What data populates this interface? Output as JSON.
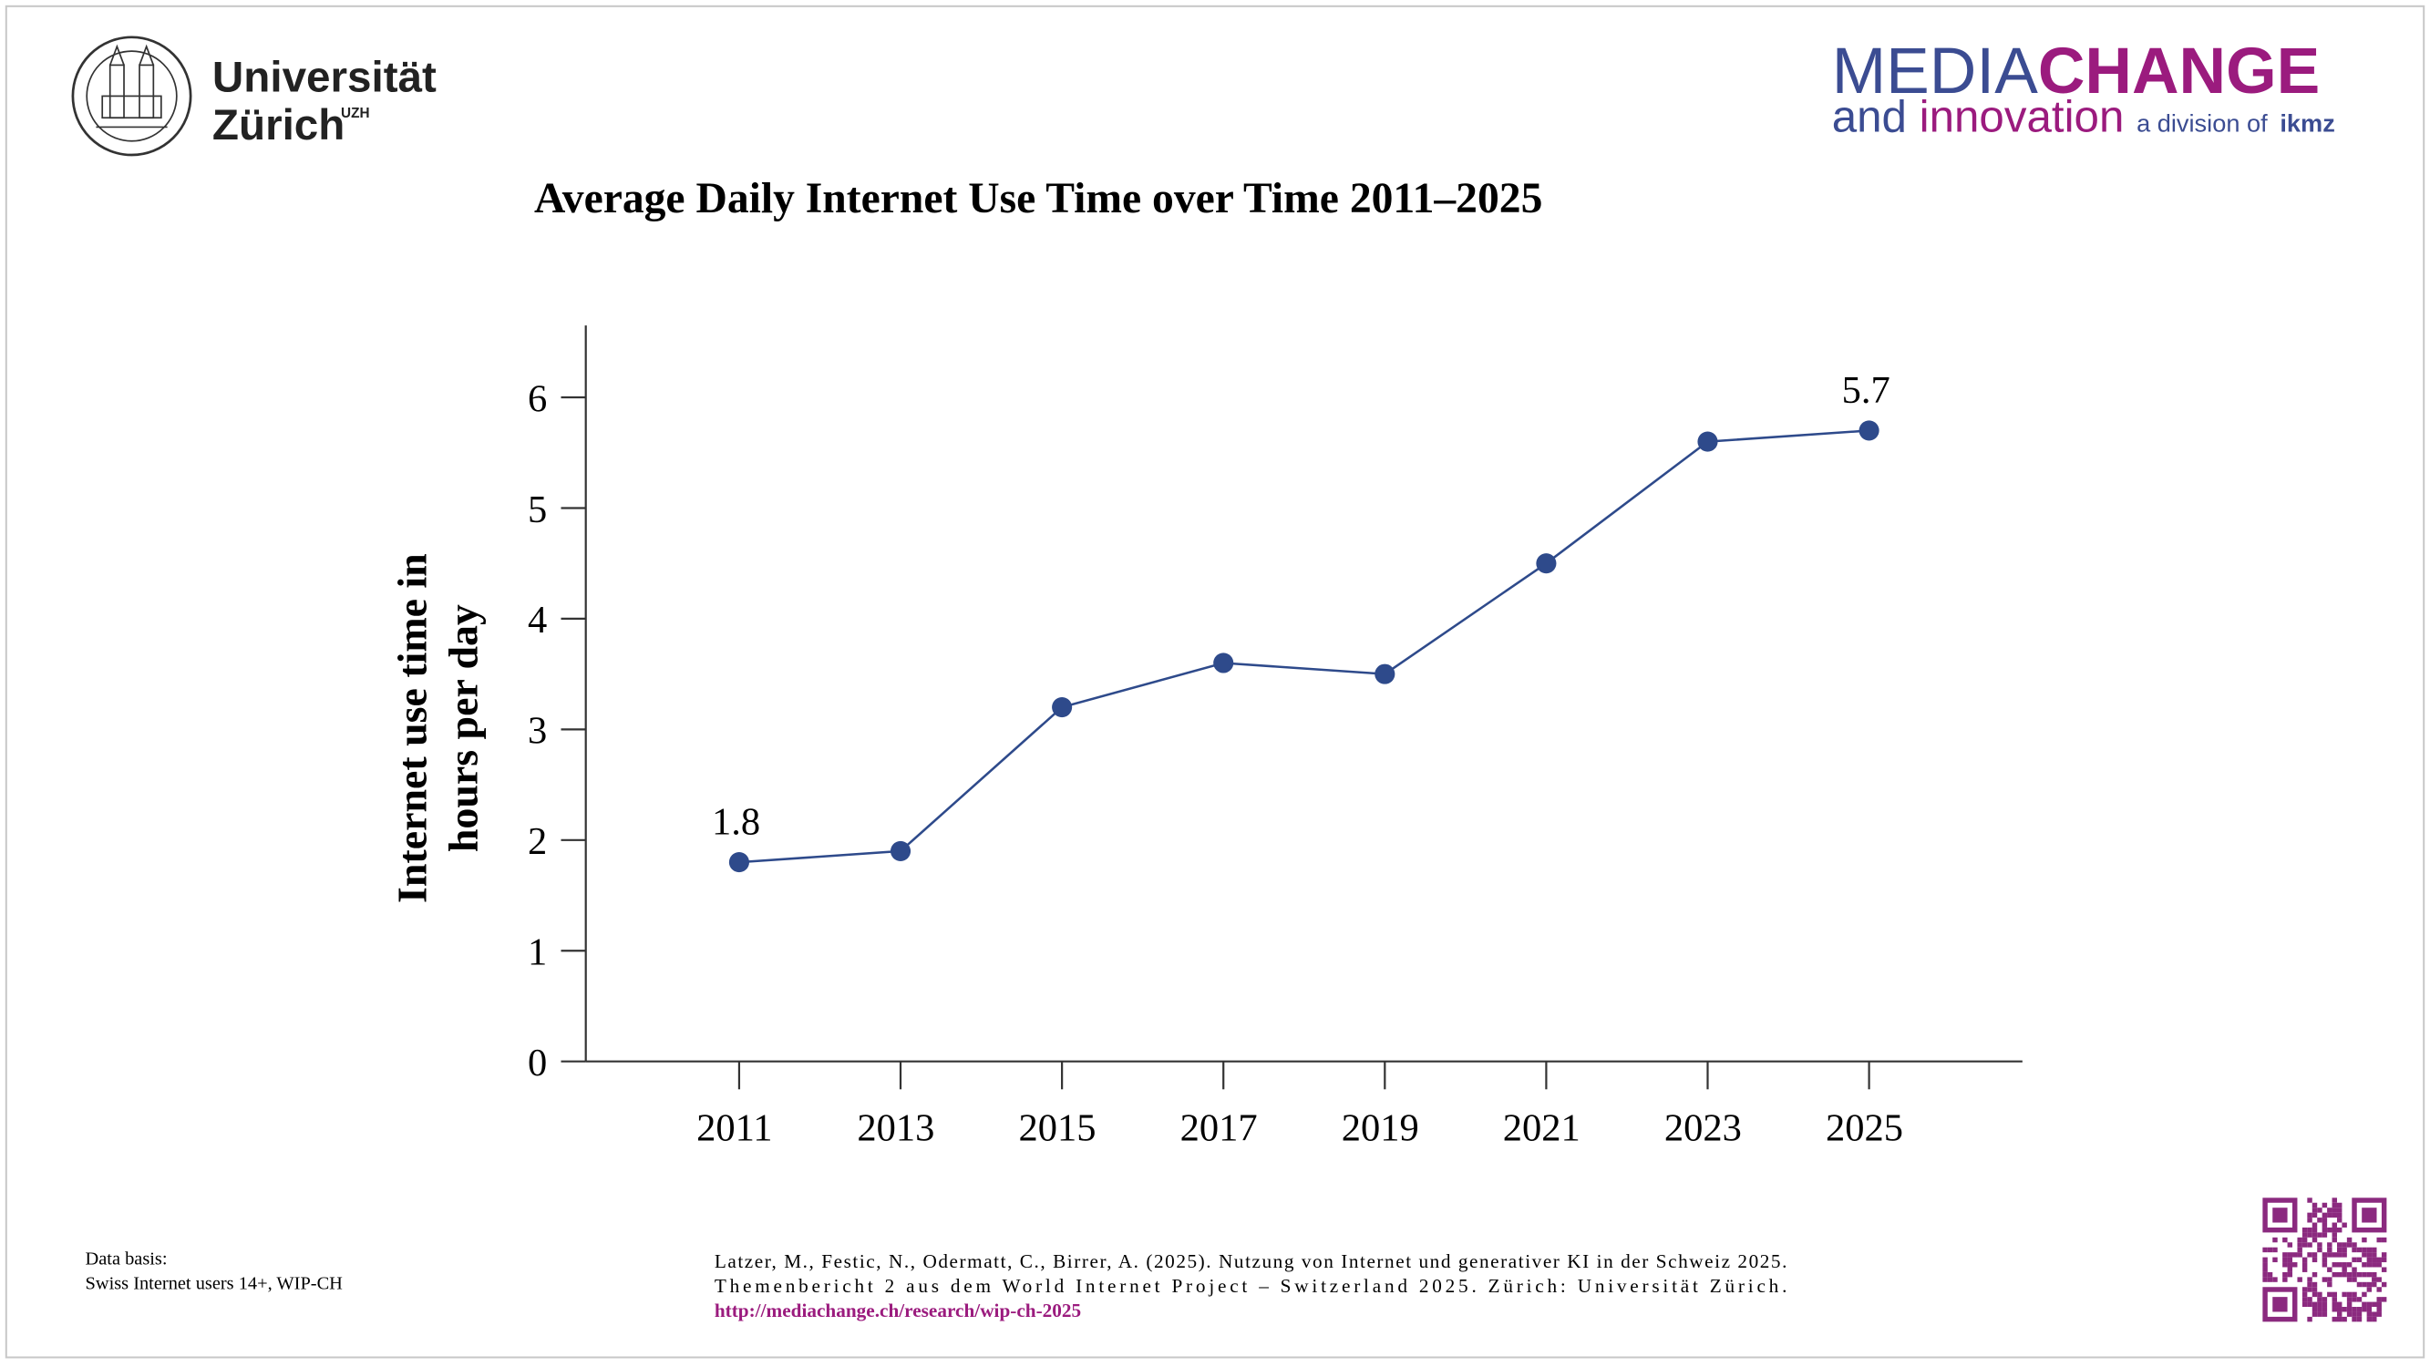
{
  "header": {
    "uni_line1": "Universität",
    "uni_line2": "Zürich",
    "uni_abbr": "UZH",
    "brand_part1": "MEDIA",
    "brand_part2": "CHANGE",
    "brand_and": "and",
    "brand_innovation": "innovation",
    "brand_division": "a division of",
    "brand_ikmz": "ikmz"
  },
  "chart_data": {
    "type": "line",
    "title": "Average Daily Internet Use Time over Time 2011–2025",
    "ylabel": [
      "Internet use time in",
      "hours per day"
    ],
    "x": [
      2011,
      2013,
      2015,
      2017,
      2019,
      2021,
      2023,
      2025
    ],
    "values": [
      1.8,
      1.9,
      3.2,
      3.6,
      3.5,
      4.5,
      5.6,
      5.7
    ],
    "value_labels": [
      "1.8",
      null,
      null,
      null,
      null,
      null,
      null,
      "5.7"
    ],
    "color": "#2e4a8b",
    "xlim": [
      2009.1,
      2026.9
    ],
    "xticks": [
      2011,
      2013,
      2015,
      2017,
      2019,
      2021,
      2023,
      2025
    ],
    "ylim": [
      0,
      6.65
    ],
    "yticks": [
      0,
      1,
      2,
      3,
      4,
      5,
      6
    ],
    "grid": false
  },
  "footer": {
    "data_basis": [
      "Data basis:",
      "Swiss Internet users 14+, WIP-CH"
    ],
    "citation": [
      "Latzer, M., Festic, N., Odermatt, C., Birrer, A. (2025). Nutzung von Internet und generativer KI in der Schweiz 2025.",
      "Themenbericht 2 aus dem World Internet Project – Switzerland 2025. Zürich: Universität Zürich."
    ],
    "url": "http://mediachange.ch/research/wip-ch-2025"
  }
}
